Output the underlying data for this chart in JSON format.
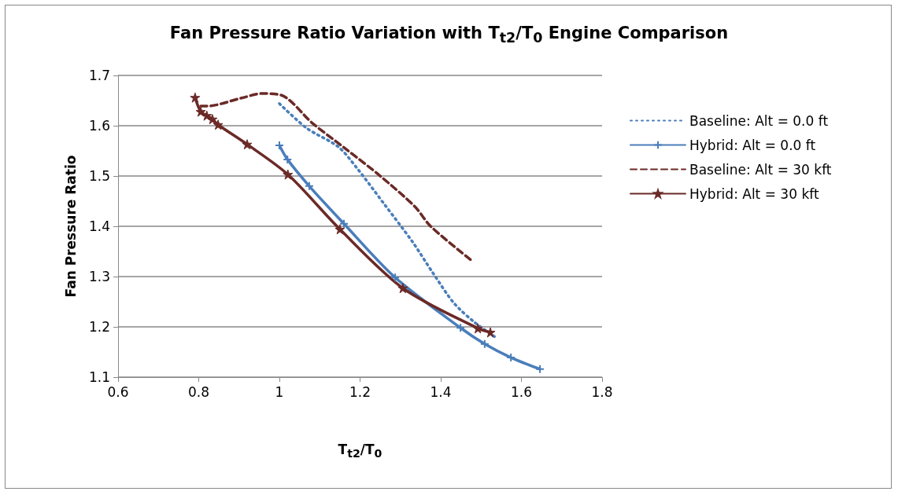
{
  "chart_data": {
    "type": "line",
    "title": "Fan Pressure Ratio Variation with T$_{t2}$/T$_{0}$ Engine Comparison",
    "xlabel": "T$_{t2}$/T$_{0}$",
    "ylabel": "Fan Pressure Ratio",
    "xlim": [
      0.6,
      1.8
    ],
    "xticks": [
      0.6,
      0.8,
      1,
      1.2,
      1.4,
      1.6,
      1.8
    ],
    "ylim": [
      1.1,
      1.7
    ],
    "yticks": [
      1.1,
      1.2,
      1.3,
      1.4,
      1.5,
      1.6,
      1.7
    ],
    "grid": "y",
    "legend": "right",
    "series": [
      {
        "name": "Baseline: Alt = 0.0 ft",
        "color": "#4a7ebb",
        "line_style": "dotted",
        "marker": "none",
        "x": [
          1.0,
          1.068,
          1.146,
          1.191,
          1.26,
          1.33,
          1.38,
          1.433,
          1.484,
          1.54
        ],
        "values": [
          1.644,
          1.595,
          1.558,
          1.517,
          1.444,
          1.369,
          1.308,
          1.247,
          1.209,
          1.177
        ]
      },
      {
        "name": "Hybrid: Alt = 0.0 ft",
        "color": "#4a7ebb",
        "line_style": "solid",
        "marker": "cross",
        "x": [
          1.0,
          1.02,
          1.074,
          1.16,
          1.287,
          1.449,
          1.509,
          1.574,
          1.646
        ],
        "values": [
          1.561,
          1.533,
          1.48,
          1.405,
          1.298,
          1.198,
          1.166,
          1.139,
          1.116
        ]
      },
      {
        "name": "Baseline: Alt = 30 kft",
        "color": "#6b2a27",
        "line_style": "dashed",
        "marker": "none",
        "x": [
          0.805,
          0.82,
          0.906,
          0.957,
          1.004,
          1.082,
          1.166,
          1.25,
          1.336,
          1.375,
          1.478
        ],
        "values": [
          1.639,
          1.639,
          1.655,
          1.664,
          1.661,
          1.605,
          1.553,
          1.5,
          1.439,
          1.4,
          1.331
        ]
      },
      {
        "name": "Hybrid: Alt = 30 kft",
        "color": "#6b2a27",
        "line_style": "solid",
        "marker": "star",
        "x": [
          0.791,
          0.805,
          0.82,
          0.834,
          0.848,
          0.92,
          1.021,
          1.15,
          1.306,
          1.492,
          1.523
        ],
        "values": [
          1.656,
          1.628,
          1.62,
          1.613,
          1.602,
          1.563,
          1.503,
          1.394,
          1.277,
          1.197,
          1.189
        ]
      }
    ]
  }
}
